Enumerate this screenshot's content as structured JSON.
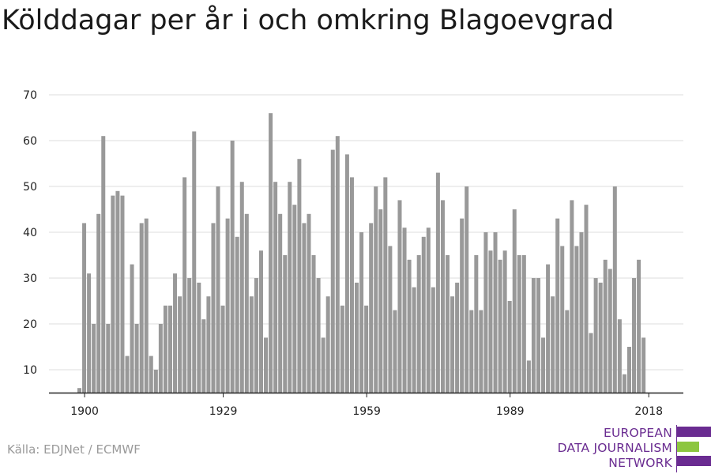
{
  "title": "Kölddagar per år i och omkring Blagoevgrad",
  "source": "Källa: EDJNet / ECMWF",
  "logo": {
    "lines": [
      "EUROPEAN",
      "DATA JOURNALISM",
      "NETWORK"
    ],
    "colors": {
      "text": "#6a2c91",
      "bar_purple": "#6a2c91",
      "bar_green": "#8cc63f"
    }
  },
  "colors": {
    "bar": "#999999",
    "grid": "#dddddd",
    "axis": "#222222"
  },
  "chart_data": {
    "type": "bar",
    "title": "Kölddagar per år i och omkring Blagoevgrad",
    "xlabel": "",
    "ylabel": "",
    "x_start": 1899,
    "x_ticks": [
      1900,
      1929,
      1959,
      1989,
      2018
    ],
    "y_ticks": [
      10,
      20,
      30,
      40,
      50,
      60,
      70
    ],
    "ylim": [
      5,
      70
    ],
    "grid": true,
    "values": [
      6,
      42,
      31,
      20,
      44,
      61,
      20,
      48,
      49,
      48,
      13,
      33,
      20,
      42,
      43,
      13,
      10,
      20,
      24,
      24,
      31,
      26,
      52,
      30,
      62,
      29,
      21,
      26,
      42,
      50,
      24,
      43,
      60,
      39,
      51,
      44,
      26,
      30,
      36,
      17,
      66,
      51,
      44,
      35,
      51,
      46,
      56,
      42,
      44,
      35,
      30,
      17,
      26,
      58,
      61,
      24,
      57,
      52,
      29,
      40,
      24,
      42,
      50,
      45,
      52,
      37,
      23,
      47,
      41,
      34,
      28,
      35,
      39,
      41,
      28,
      53,
      47,
      35,
      26,
      29,
      43,
      50,
      23,
      35,
      23,
      40,
      36,
      40,
      34,
      36,
      25,
      45,
      35,
      35,
      12,
      30,
      30,
      17,
      33,
      26,
      43,
      37,
      23,
      47,
      37,
      40,
      46,
      18,
      30,
      29,
      34,
      32,
      50,
      21,
      9,
      15,
      30,
      34,
      17
    ]
  }
}
